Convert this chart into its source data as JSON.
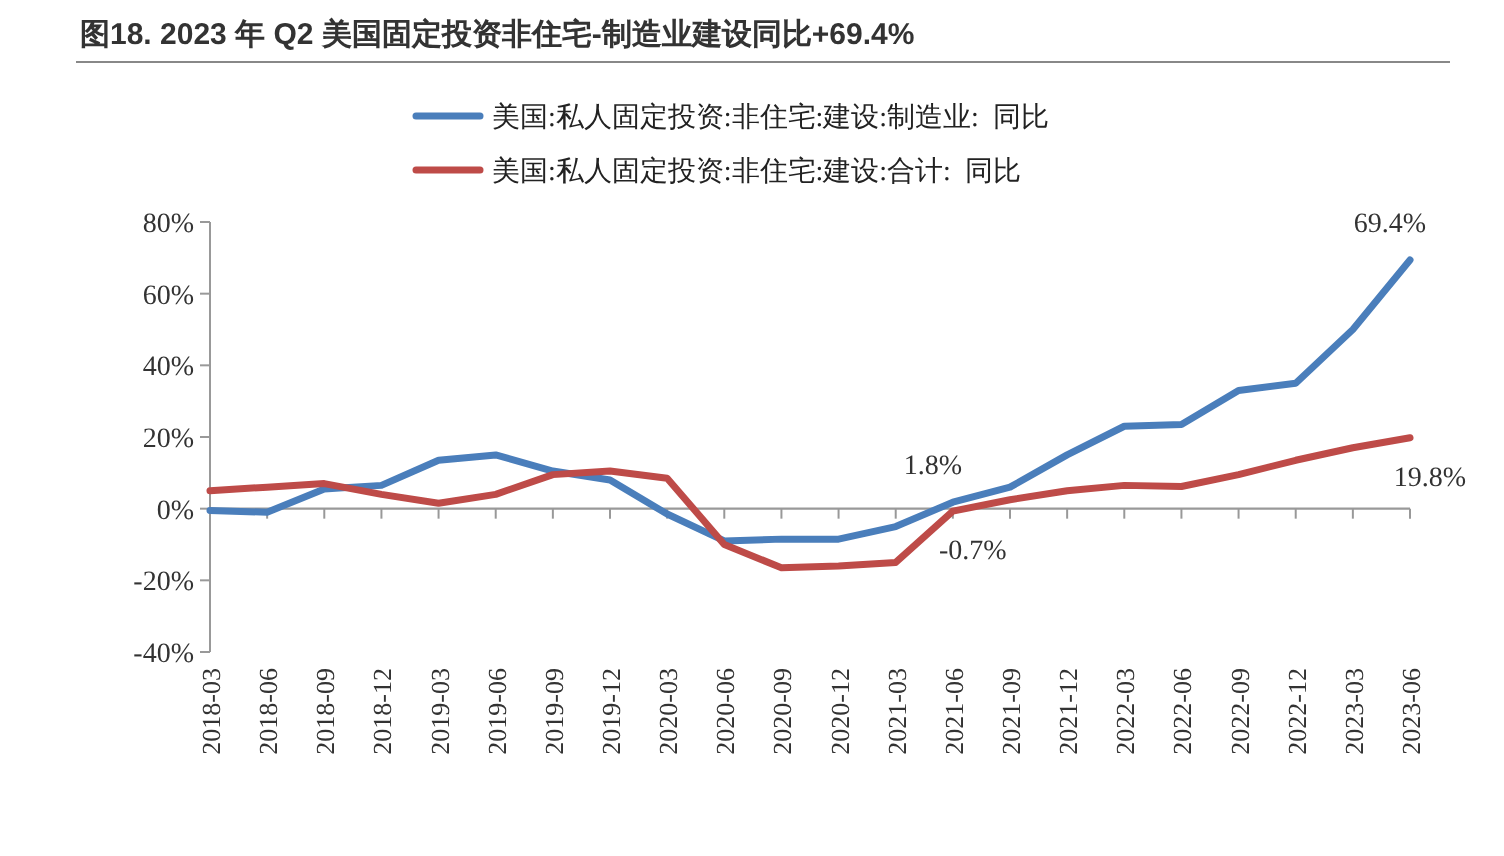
{
  "chart_data": {
    "type": "line",
    "title": "图18. 2023 年 Q2 美国固定投资非住宅-制造业建设同比+69.4%",
    "categories": [
      "2018-03",
      "2018-06",
      "2018-09",
      "2018-12",
      "2019-03",
      "2019-06",
      "2019-09",
      "2019-12",
      "2020-03",
      "2020-06",
      "2020-09",
      "2020-12",
      "2021-03",
      "2021-06",
      "2021-09",
      "2021-12",
      "2022-03",
      "2022-06",
      "2022-09",
      "2022-12",
      "2023-03",
      "2023-06"
    ],
    "series": [
      {
        "name": "美国:私人固定投资:非住宅:建设:制造业:  同比",
        "color": "#4a7ebb",
        "values": [
          -0.5,
          -1,
          5.5,
          6.5,
          13.5,
          15,
          10.5,
          8,
          -1.5,
          -9,
          -8.5,
          -8.5,
          -5,
          1.8,
          6,
          15,
          23,
          23.5,
          33,
          35,
          50,
          69.4
        ],
        "value_labels": [
          null,
          null,
          null,
          null,
          null,
          null,
          null,
          null,
          null,
          null,
          null,
          null,
          null,
          "1.8%",
          null,
          null,
          null,
          null,
          null,
          null,
          null,
          "69.4%"
        ]
      },
      {
        "name": "美国:私人固定投资:非住宅:建设:合计:  同比",
        "color": "#be4b48",
        "values": [
          5,
          6,
          7,
          4,
          1.5,
          4,
          9.5,
          10.5,
          8.5,
          -10,
          -16.5,
          -16,
          -15,
          -0.7,
          2.5,
          5,
          6.5,
          6.2,
          9.5,
          13.5,
          17,
          19.8
        ],
        "value_labels": [
          null,
          null,
          null,
          null,
          null,
          null,
          null,
          null,
          null,
          null,
          null,
          null,
          null,
          "-0.7%",
          null,
          null,
          null,
          null,
          null,
          null,
          null,
          "19.8%"
        ]
      }
    ],
    "ylim": [
      -40,
      80
    ],
    "yticks": [
      {
        "value": -40,
        "label": "-40%"
      },
      {
        "value": -20,
        "label": "-20%"
      },
      {
        "value": 0,
        "label": "0%"
      },
      {
        "value": 20,
        "label": "20%"
      },
      {
        "value": 40,
        "label": "40%"
      },
      {
        "value": 60,
        "label": "60%"
      },
      {
        "value": 80,
        "label": "80%"
      }
    ],
    "legend": "top",
    "marker": "none",
    "line_style": "solid"
  }
}
